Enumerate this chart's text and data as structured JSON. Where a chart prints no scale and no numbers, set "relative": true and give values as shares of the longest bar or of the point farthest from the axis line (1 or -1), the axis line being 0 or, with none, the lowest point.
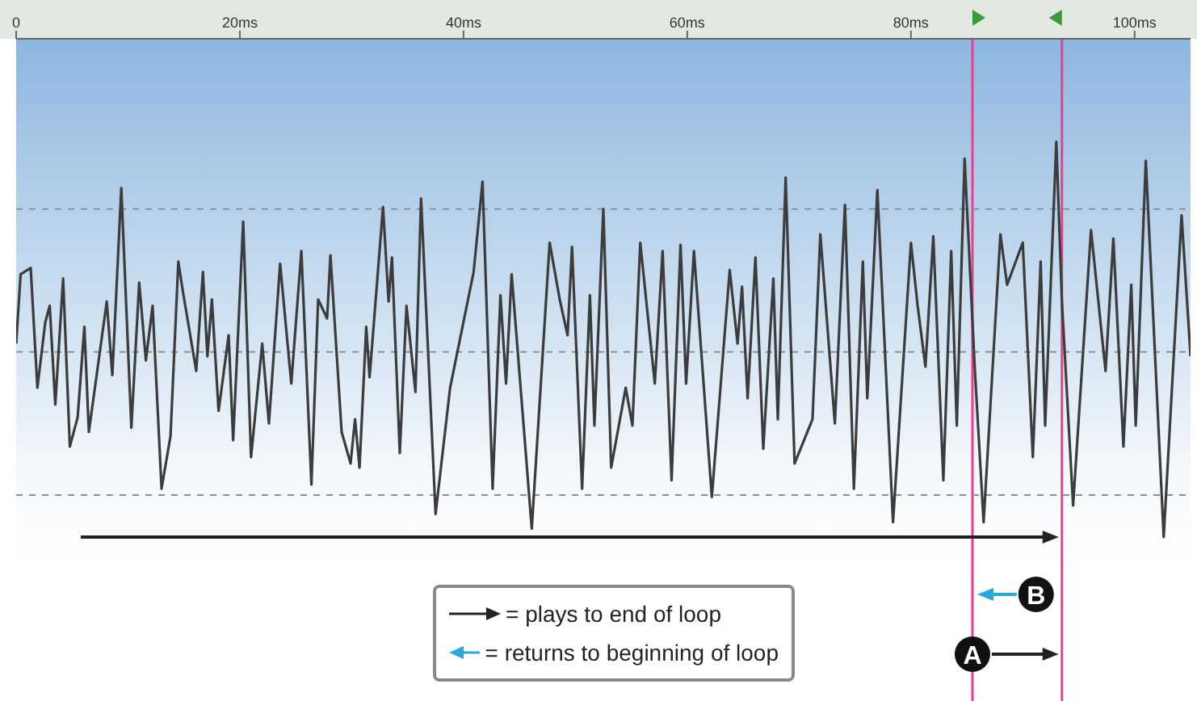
{
  "chart_data": {
    "type": "line",
    "relative": true,
    "x": [
      0,
      0.4,
      1.3,
      1.9,
      2.6,
      3.0,
      3.5,
      4.2,
      4.8,
      5.5,
      6.1,
      6.5,
      8.1,
      8.6,
      9.4,
      10.3,
      11.0,
      11.6,
      12.2,
      13.0,
      13.8,
      14.5,
      14.9,
      16.1,
      16.7,
      17.1,
      17.5,
      18.1,
      19.0,
      19.4,
      20.3,
      21.0,
      22.0,
      22.6,
      23.6,
      24.6,
      25.5,
      26.4,
      27.0,
      27.8,
      28.1,
      29.1,
      29.9,
      30.3,
      30.7,
      31.3,
      31.6,
      32.8,
      33.3,
      33.6,
      34.3,
      34.9,
      35.7,
      36.2,
      37.5,
      38.8,
      40.9,
      41.7,
      42.6,
      43.3,
      43.8,
      44.3,
      46.1,
      47.7,
      48.6,
      49.3,
      49.7,
      50.6,
      51.3,
      51.7,
      52.5,
      53.2,
      54.5,
      55.1,
      55.8,
      57.1,
      57.8,
      58.6,
      59.4,
      59.9,
      60.6,
      62.2,
      63.8,
      64.5,
      64.9,
      65.4,
      66.1,
      66.8,
      67.7,
      68.1,
      68.8,
      69.6,
      71.2,
      71.9,
      73.2,
      74.1,
      74.9,
      75.7,
      76.1,
      77.0,
      78.4,
      80.0,
      80.6,
      81.3,
      82.0,
      82.9,
      83.6,
      84.1,
      84.8,
      85.7,
      86.5,
      88.0,
      88.6,
      90.0,
      90.9,
      91.6,
      92.0,
      93.0,
      93.5,
      94.5,
      96.1,
      97.4,
      98.1,
      99.0,
      99.7,
      100.1,
      101.0,
      102.6,
      104.2,
      105.0
    ],
    "series": [
      {
        "color": "#3c3c3c",
        "values": [
          0.04,
          0.37,
          0.4,
          -0.17,
          0.14,
          0.22,
          -0.25,
          0.35,
          -0.45,
          -0.31,
          0.12,
          -0.38,
          0.24,
          -0.11,
          0.78,
          -0.36,
          0.33,
          -0.04,
          0.22,
          -0.65,
          -0.4,
          0.43,
          0.29,
          -0.09,
          0.38,
          -0.02,
          0.25,
          -0.28,
          0.08,
          -0.42,
          0.62,
          -0.5,
          0.04,
          -0.34,
          0.42,
          -0.15,
          0.48,
          -0.63,
          0.25,
          0.16,
          0.46,
          -0.38,
          -0.53,
          -0.32,
          -0.55,
          0.12,
          -0.12,
          0.69,
          0.24,
          0.45,
          -0.48,
          0.22,
          -0.19,
          0.73,
          -0.77,
          -0.17,
          0.38,
          0.81,
          -0.65,
          0.27,
          -0.15,
          0.37,
          -0.84,
          0.52,
          0.25,
          0.08,
          0.5,
          -0.65,
          0.27,
          -0.35,
          0.68,
          -0.55,
          -0.17,
          -0.35,
          0.52,
          -0.15,
          0.48,
          -0.61,
          0.51,
          -0.15,
          0.48,
          -0.69,
          0.39,
          0.04,
          0.31,
          -0.22,
          0.45,
          -0.46,
          0.35,
          -0.32,
          0.83,
          -0.53,
          -0.32,
          0.56,
          -0.34,
          0.7,
          -0.65,
          0.43,
          -0.22,
          0.77,
          -0.81,
          0.52,
          0.22,
          -0.07,
          0.55,
          -0.61,
          0.48,
          -0.35,
          0.92,
          -0.07,
          -0.81,
          0.56,
          0.32,
          0.52,
          -0.5,
          0.43,
          -0.35,
          1,
          0.24,
          -0.73,
          0.58,
          -0.09,
          0.54,
          -0.45,
          0.32,
          -0.35,
          0.91,
          -0.88,
          0.65,
          -0.02
        ]
      }
    ],
    "xlim": [
      0,
      105
    ],
    "xticks": [
      {
        "value": 0,
        "label": "0"
      },
      {
        "value": 20,
        "label": "20ms"
      },
      {
        "value": 40,
        "label": "40ms"
      },
      {
        "value": 60,
        "label": "60ms"
      },
      {
        "value": 80,
        "label": "80ms"
      },
      {
        "value": 100,
        "label": "100ms"
      }
    ],
    "ref_lines": [
      {
        "axis": "x",
        "value": 85.5,
        "color": "#e8408a"
      },
      {
        "axis": "x",
        "value": 93.5,
        "color": "#e8408a"
      },
      {
        "axis": "y",
        "value": 0.68,
        "color": "#8a9090",
        "line_style": "dashed"
      },
      {
        "axis": "y",
        "value": 0,
        "color": "#8a9090",
        "line_style": "dashed"
      },
      {
        "axis": "y",
        "value": -0.68,
        "color": "#8a9090",
        "line_style": "dashed"
      }
    ],
    "annotations": [
      "= plays to end of loop",
      "= returns to beginning of loop",
      "A",
      "B"
    ]
  }
}
